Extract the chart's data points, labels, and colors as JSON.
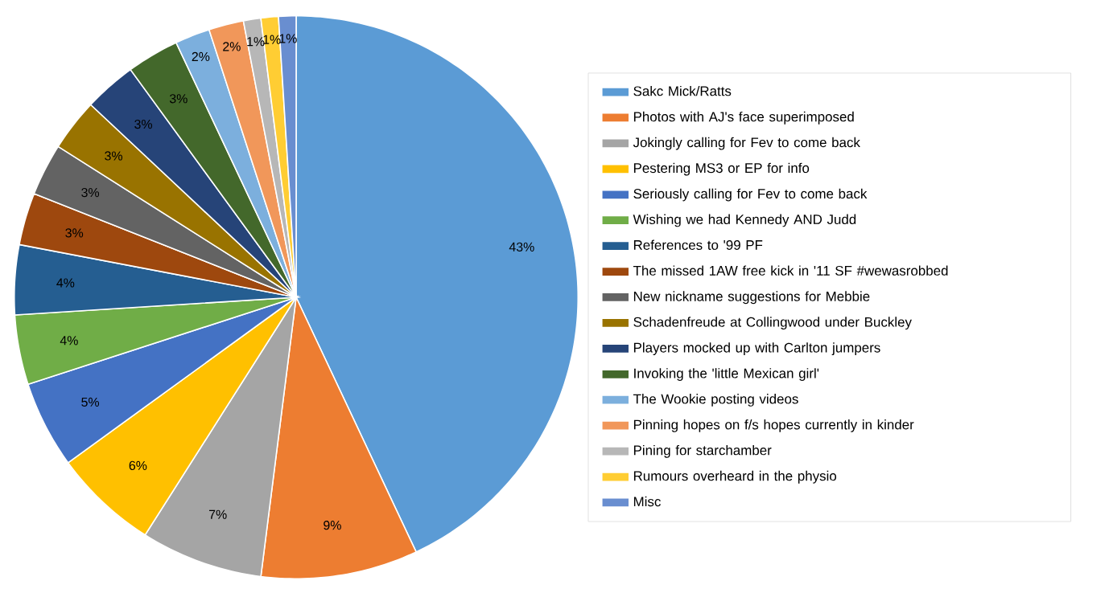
{
  "chart_data": {
    "type": "pie",
    "categories": [
      "Sakc Mick/Ratts",
      "Photos with AJ's face superimposed",
      "Jokingly calling for Fev to come back",
      "Pestering MS3 or EP for info",
      "Seriously calling for Fev to come back",
      "Wishing we had Kennedy AND Judd",
      "References to '99 PF",
      "The missed 1AW free kick in '11 SF #wewasrobbed",
      "New nickname suggestions for Mebbie",
      "Schadenfreude at Collingwood under Buckley",
      "Players mocked up with Carlton jumpers",
      "Invoking the 'little Mexican girl'",
      "The Wookie posting videos",
      "Pinning hopes on f/s hopes currently in kinder",
      "Pining for starchamber",
      "Rumours overheard in the physio",
      "Misc"
    ],
    "values": [
      43,
      9,
      7,
      6,
      5,
      4,
      4,
      3,
      3,
      3,
      3,
      3,
      2,
      2,
      1,
      1,
      1
    ],
    "value_labels": [
      "43%",
      "9%",
      "7%",
      "6%",
      "5%",
      "4%",
      "4%",
      "3%",
      "3%",
      "3%",
      "3%",
      "3%",
      "2%",
      "2%",
      "1%",
      "1%",
      "1%"
    ],
    "colors": [
      "#5b9bd5",
      "#ed7d31",
      "#a5a5a5",
      "#ffc000",
      "#4472c4",
      "#70ad47",
      "#255e91",
      "#9e480e",
      "#636363",
      "#997300",
      "#264478",
      "#43682b",
      "#7cafdd",
      "#f1975a",
      "#b7b7b7",
      "#ffcd33",
      "#698ed0"
    ],
    "legend": "right"
  }
}
